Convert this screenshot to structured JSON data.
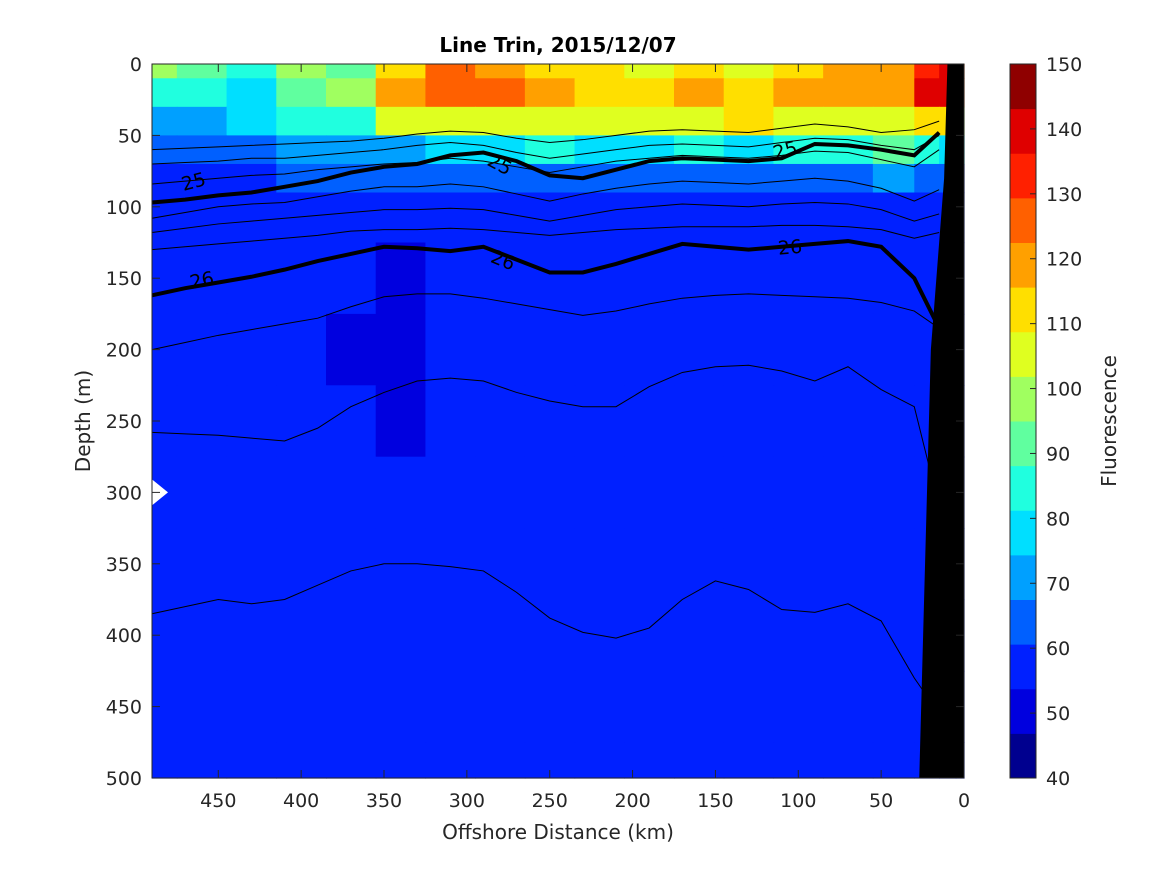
{
  "chart_data": {
    "type": "heatmap",
    "title": "Line Trin, 2015/12/07",
    "xlabel": "Offshore Distance (km)",
    "ylabel": "Depth (m)",
    "colorbar_label": "Fluorescence",
    "x_reversed": true,
    "y_reversed": true,
    "xlim": [
      490,
      0
    ],
    "ylim": [
      0,
      500
    ],
    "clim": [
      40,
      150
    ],
    "x_ticks": [
      450,
      400,
      350,
      300,
      250,
      200,
      150,
      100,
      50,
      0
    ],
    "y_ticks": [
      0,
      50,
      100,
      150,
      200,
      250,
      300,
      350,
      400,
      450,
      500
    ],
    "colorbar_ticks": [
      40,
      50,
      60,
      70,
      80,
      90,
      100,
      110,
      120,
      130,
      140,
      150
    ],
    "colormap": [
      "#00008f",
      "#0000df",
      "#0020ff",
      "#0060ff",
      "#00a0ff",
      "#00dfff",
      "#20ffdf",
      "#60ff9f",
      "#a0ff60",
      "#dfff20",
      "#ffdf00",
      "#ffa000",
      "#ff6000",
      "#ff2000",
      "#df0000",
      "#8f0000"
    ],
    "x_grid": [
      490,
      460,
      430,
      400,
      370,
      340,
      310,
      280,
      250,
      220,
      190,
      160,
      130,
      100,
      70,
      40,
      20,
      10,
      0
    ],
    "y_grid": [
      0,
      20,
      40,
      60,
      80,
      100,
      150,
      200,
      250,
      300,
      350,
      400,
      450,
      500
    ],
    "fluorescence": [
      [
        95,
        90,
        88,
        98,
        92,
        110,
        125,
        118,
        110,
        112,
        108,
        115,
        108,
        115,
        120,
        118,
        135,
        140,
        125
      ],
      [
        85,
        82,
        80,
        92,
        96,
        118,
        128,
        124,
        116,
        110,
        112,
        118,
        112,
        118,
        122,
        116,
        138,
        142,
        125
      ],
      [
        72,
        70,
        75,
        82,
        88,
        102,
        108,
        104,
        108,
        106,
        104,
        108,
        110,
        106,
        108,
        104,
        112,
        110,
        100
      ],
      [
        62,
        62,
        66,
        70,
        72,
        74,
        76,
        78,
        86,
        80,
        80,
        82,
        80,
        82,
        86,
        90,
        85,
        80,
        75
      ],
      [
        58,
        58,
        60,
        62,
        62,
        63,
        64,
        63,
        64,
        64,
        63,
        63,
        63,
        64,
        66,
        68,
        66,
        64,
        60
      ],
      [
        56,
        56,
        55,
        57,
        56,
        55,
        55,
        55,
        56,
        55,
        56,
        56,
        55,
        55,
        57,
        56,
        56,
        55,
        55
      ],
      [
        55,
        54,
        56,
        56,
        55,
        53,
        55,
        55,
        55,
        55,
        56,
        55,
        55,
        55,
        55,
        56,
        55,
        55,
        55
      ],
      [
        55,
        55,
        57,
        56,
        53,
        52,
        54,
        55,
        55,
        55,
        56,
        55,
        55,
        55,
        56,
        55,
        55,
        55,
        55
      ],
      [
        56,
        56,
        57,
        56,
        55,
        53,
        55,
        55,
        55,
        55,
        55,
        55,
        56,
        55,
        55,
        56,
        55,
        55,
        55
      ],
      [
        57,
        57,
        58,
        57,
        56,
        56,
        55,
        55,
        55,
        55,
        55,
        56,
        55,
        56,
        55,
        56,
        55,
        55,
        55
      ],
      [
        57,
        57,
        59,
        58,
        57,
        56,
        55,
        55,
        55,
        55,
        55,
        56,
        55,
        55,
        55,
        55,
        55,
        55,
        55
      ],
      [
        56,
        57,
        59,
        58,
        57,
        56,
        55,
        55,
        55,
        55,
        55,
        55,
        55,
        56,
        55,
        55,
        55,
        55,
        55
      ],
      [
        56,
        56,
        58,
        57,
        57,
        56,
        55,
        55,
        55,
        55,
        55,
        55,
        55,
        55,
        55,
        55,
        55,
        55,
        55
      ],
      [
        56,
        56,
        57,
        57,
        56,
        56,
        55,
        55,
        55,
        55,
        55,
        55,
        55,
        55,
        55,
        55,
        55,
        55,
        55
      ]
    ],
    "contours": {
      "x": [
        490,
        470,
        450,
        430,
        410,
        390,
        370,
        350,
        330,
        310,
        290,
        270,
        250,
        230,
        210,
        190,
        170,
        150,
        130,
        110,
        90,
        70,
        50,
        30,
        15
      ],
      "thin": [
        [
          60,
          59,
          58,
          57,
          56,
          55,
          54,
          52,
          49,
          47,
          48,
          52,
          55,
          53,
          50,
          47,
          46,
          47,
          48,
          45,
          42,
          44,
          48,
          46,
          40
        ],
        [
          70,
          69,
          68,
          66,
          66,
          64,
          62,
          60,
          57,
          55,
          57,
          62,
          66,
          63,
          60,
          57,
          56,
          57,
          58,
          55,
          52,
          53,
          57,
          60,
          50
        ],
        [
          84,
          82,
          80,
          78,
          77,
          74,
          72,
          70,
          69,
          66,
          68,
          72,
          76,
          72,
          68,
          66,
          64,
          65,
          66,
          64,
          61,
          62,
          67,
          72,
          60
        ],
        [
          108,
          104,
          100,
          98,
          97,
          93,
          89,
          86,
          86,
          84,
          86,
          91,
          96,
          91,
          87,
          84,
          82,
          83,
          84,
          82,
          80,
          82,
          87,
          96,
          88
        ],
        [
          118,
          115,
          112,
          110,
          108,
          106,
          104,
          102,
          102,
          101,
          102,
          106,
          110,
          106,
          102,
          100,
          98,
          99,
          100,
          98,
          97,
          98,
          102,
          110,
          105
        ],
        [
          130,
          128,
          126,
          124,
          122,
          120,
          117,
          116,
          116,
          115,
          116,
          118,
          120,
          118,
          116,
          115,
          114,
          114,
          114,
          113,
          113,
          114,
          116,
          122,
          118
        ],
        [
          200,
          195,
          190,
          186,
          182,
          178,
          170,
          163,
          161,
          161,
          164,
          168,
          172,
          176,
          173,
          168,
          164,
          162,
          161,
          162,
          163,
          164,
          167,
          173,
          185
        ],
        [
          258,
          259,
          260,
          262,
          264,
          255,
          240,
          230,
          222,
          220,
          222,
          230,
          236,
          240,
          240,
          226,
          216,
          212,
          211,
          215,
          222,
          212,
          228,
          240,
          310
        ],
        [
          385,
          380,
          375,
          378,
          375,
          365,
          355,
          350,
          350,
          352,
          355,
          370,
          388,
          398,
          402,
          395,
          375,
          362,
          368,
          382,
          384,
          378,
          390,
          430,
          455
        ]
      ],
      "thick_25": [
        97,
        95,
        92,
        90,
        86,
        82,
        76,
        72,
        70,
        64,
        62,
        68,
        78,
        80,
        74,
        68,
        66,
        67,
        68,
        66,
        56,
        57,
        60,
        64,
        48
      ],
      "thick_26": [
        162,
        157,
        153,
        149,
        144,
        138,
        133,
        128,
        129,
        131,
        128,
        137,
        146,
        146,
        140,
        133,
        126,
        128,
        130,
        128,
        126,
        124,
        128,
        150,
        185
      ]
    },
    "contour_labels": [
      {
        "text": "25",
        "x": 465,
        "y": 82,
        "angle": -15
      },
      {
        "text": "25",
        "x": 280,
        "y": 70,
        "angle": 28
      },
      {
        "text": "25",
        "x": 108,
        "y": 60,
        "angle": -15
      },
      {
        "text": "26",
        "x": 460,
        "y": 151,
        "angle": -12
      },
      {
        "text": "26",
        "x": 278,
        "y": 137,
        "angle": 22
      },
      {
        "text": "26",
        "x": 105,
        "y": 128,
        "angle": -5
      }
    ],
    "seafloor": [
      [
        10,
        0
      ],
      [
        2,
        0
      ],
      [
        0,
        0
      ],
      [
        0,
        500
      ],
      [
        27,
        500
      ],
      [
        20,
        200
      ],
      [
        12,
        80
      ]
    ],
    "data_gap": {
      "x": 490,
      "y": 300
    }
  }
}
